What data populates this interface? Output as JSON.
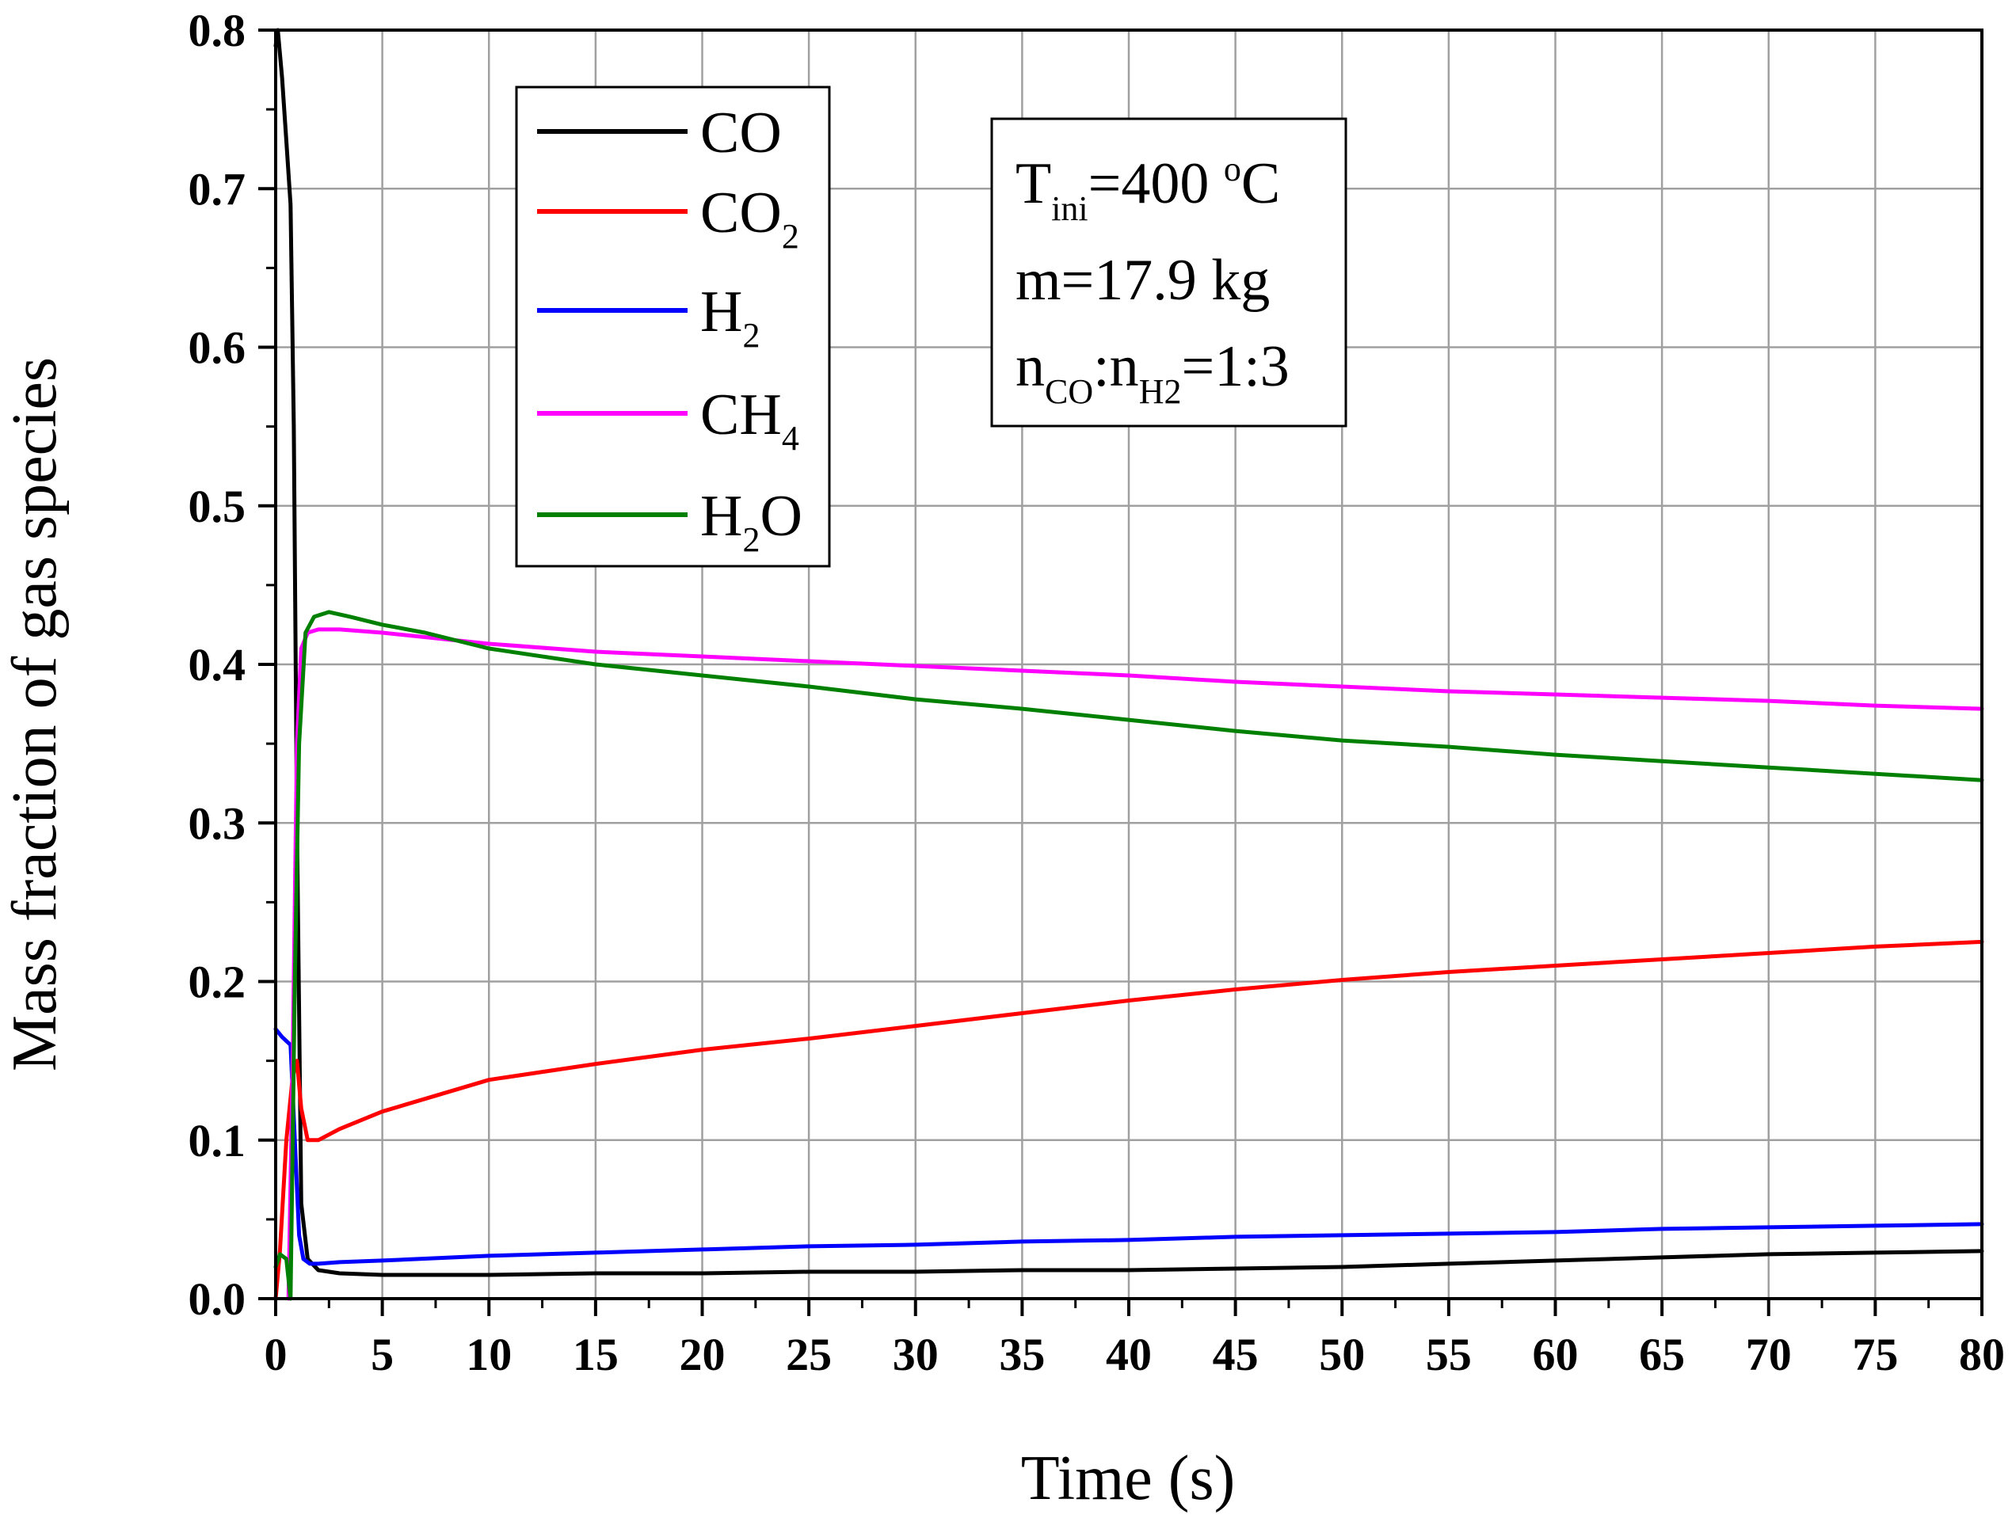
{
  "chart_data": {
    "type": "line",
    "xlabel": "Time (s)",
    "ylabel": "Mass fraction of gas species",
    "xlim": [
      0,
      80
    ],
    "ylim": [
      0,
      0.8
    ],
    "x_ticks": [
      "0",
      "5",
      "10",
      "15",
      "20",
      "25",
      "30",
      "35",
      "40",
      "45",
      "50",
      "55",
      "60",
      "65",
      "70",
      "75",
      "80"
    ],
    "y_ticks": [
      "0.0",
      "0.1",
      "0.2",
      "0.3",
      "0.4",
      "0.5",
      "0.6",
      "0.7",
      "0.8"
    ],
    "grid": true,
    "legend": {
      "placement": "top-left",
      "entries": [
        {
          "label": "CO",
          "sub": ""
        },
        {
          "label": "CO",
          "sub": "2"
        },
        {
          "label": "H",
          "sub": "2"
        },
        {
          "label": "CH",
          "sub": "4"
        },
        {
          "label": "H",
          "sub": "2",
          "suffix": "O"
        }
      ]
    },
    "annotation": {
      "line1": {
        "t": "T",
        "sub": "ini",
        "eq": "=400 ",
        "sup": "o",
        "unit": "C"
      },
      "line2": "m=17.9 kg",
      "line3": {
        "n1": "n",
        "sub1": "CO",
        "colon": ":n",
        "sub2": "H2",
        "rest": "=1:3"
      }
    },
    "series": [
      {
        "legend_index": 0,
        "color": "#000000",
        "x": [
          0,
          0.1,
          0.3,
          0.5,
          0.7,
          0.85,
          1.0,
          1.2,
          1.5,
          2,
          3,
          5,
          10,
          15,
          20,
          25,
          30,
          35,
          40,
          45,
          50,
          55,
          60,
          65,
          70,
          75,
          80
        ],
        "y": [
          0.79,
          0.8,
          0.77,
          0.73,
          0.69,
          0.55,
          0.3,
          0.06,
          0.025,
          0.018,
          0.016,
          0.015,
          0.015,
          0.016,
          0.016,
          0.017,
          0.017,
          0.018,
          0.018,
          0.019,
          0.02,
          0.022,
          0.024,
          0.026,
          0.028,
          0.029,
          0.03
        ]
      },
      {
        "legend_index": 1,
        "color": "#ff0000",
        "x": [
          0,
          0.2,
          0.5,
          0.8,
          1.0,
          1.2,
          1.5,
          2,
          3,
          5,
          10,
          15,
          20,
          25,
          30,
          35,
          40,
          45,
          50,
          55,
          60,
          65,
          70,
          75,
          80
        ],
        "y": [
          0.0,
          0.03,
          0.1,
          0.14,
          0.15,
          0.12,
          0.1,
          0.1,
          0.107,
          0.118,
          0.138,
          0.148,
          0.157,
          0.164,
          0.172,
          0.18,
          0.188,
          0.195,
          0.201,
          0.206,
          0.21,
          0.214,
          0.218,
          0.222,
          0.225
        ]
      },
      {
        "legend_index": 2,
        "color": "#0000ff",
        "x": [
          0,
          0.3,
          0.7,
          0.9,
          1.1,
          1.3,
          1.6,
          2,
          3,
          5,
          10,
          15,
          20,
          25,
          30,
          35,
          40,
          45,
          50,
          55,
          60,
          65,
          70,
          75,
          80
        ],
        "y": [
          0.17,
          0.165,
          0.16,
          0.1,
          0.04,
          0.025,
          0.022,
          0.022,
          0.023,
          0.024,
          0.027,
          0.029,
          0.031,
          0.033,
          0.034,
          0.036,
          0.037,
          0.039,
          0.04,
          0.041,
          0.042,
          0.044,
          0.045,
          0.046,
          0.047
        ]
      },
      {
        "legend_index": 3,
        "color": "#ff00ff",
        "x": [
          0.6,
          0.8,
          1.0,
          1.2,
          1.5,
          2,
          3,
          5,
          10,
          15,
          20,
          25,
          30,
          35,
          40,
          45,
          50,
          55,
          60,
          65,
          70,
          75,
          80
        ],
        "y": [
          0.0,
          0.15,
          0.35,
          0.41,
          0.42,
          0.422,
          0.422,
          0.42,
          0.413,
          0.408,
          0.405,
          0.402,
          0.399,
          0.396,
          0.393,
          0.389,
          0.386,
          0.383,
          0.381,
          0.379,
          0.377,
          0.374,
          0.372
        ]
      },
      {
        "legend_index": 4,
        "color": "#008000",
        "x": [
          0,
          0.2,
          0.5,
          0.7,
          0.9,
          1.1,
          1.4,
          1.8,
          2.5,
          3.5,
          5,
          7,
          10,
          15,
          20,
          25,
          30,
          35,
          40,
          45,
          50,
          55,
          60,
          65,
          70,
          75,
          80
        ],
        "y": [
          0.02,
          0.028,
          0.025,
          0.0,
          0.2,
          0.35,
          0.42,
          0.43,
          0.433,
          0.43,
          0.425,
          0.42,
          0.41,
          0.4,
          0.393,
          0.386,
          0.378,
          0.372,
          0.365,
          0.358,
          0.352,
          0.348,
          0.343,
          0.339,
          0.335,
          0.331,
          0.327
        ]
      }
    ]
  }
}
